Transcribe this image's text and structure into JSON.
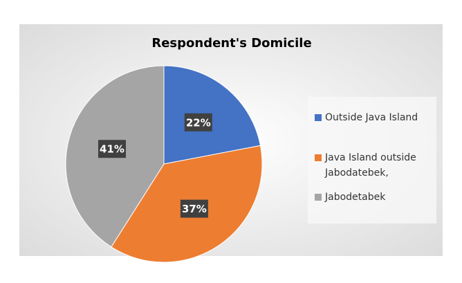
{
  "chart_data": {
    "type": "pie",
    "title": "Respondent's Domicile",
    "categories": [
      "Outside Java Island",
      "Java Island outside Jabodatebek,",
      "Jabodetabek"
    ],
    "values": [
      22,
      37,
      41
    ],
    "value_labels": [
      "22%",
      "37%",
      "41%"
    ],
    "colors": [
      "#4472c4",
      "#ed7d31",
      "#a5a5a5"
    ],
    "legend": "right"
  }
}
